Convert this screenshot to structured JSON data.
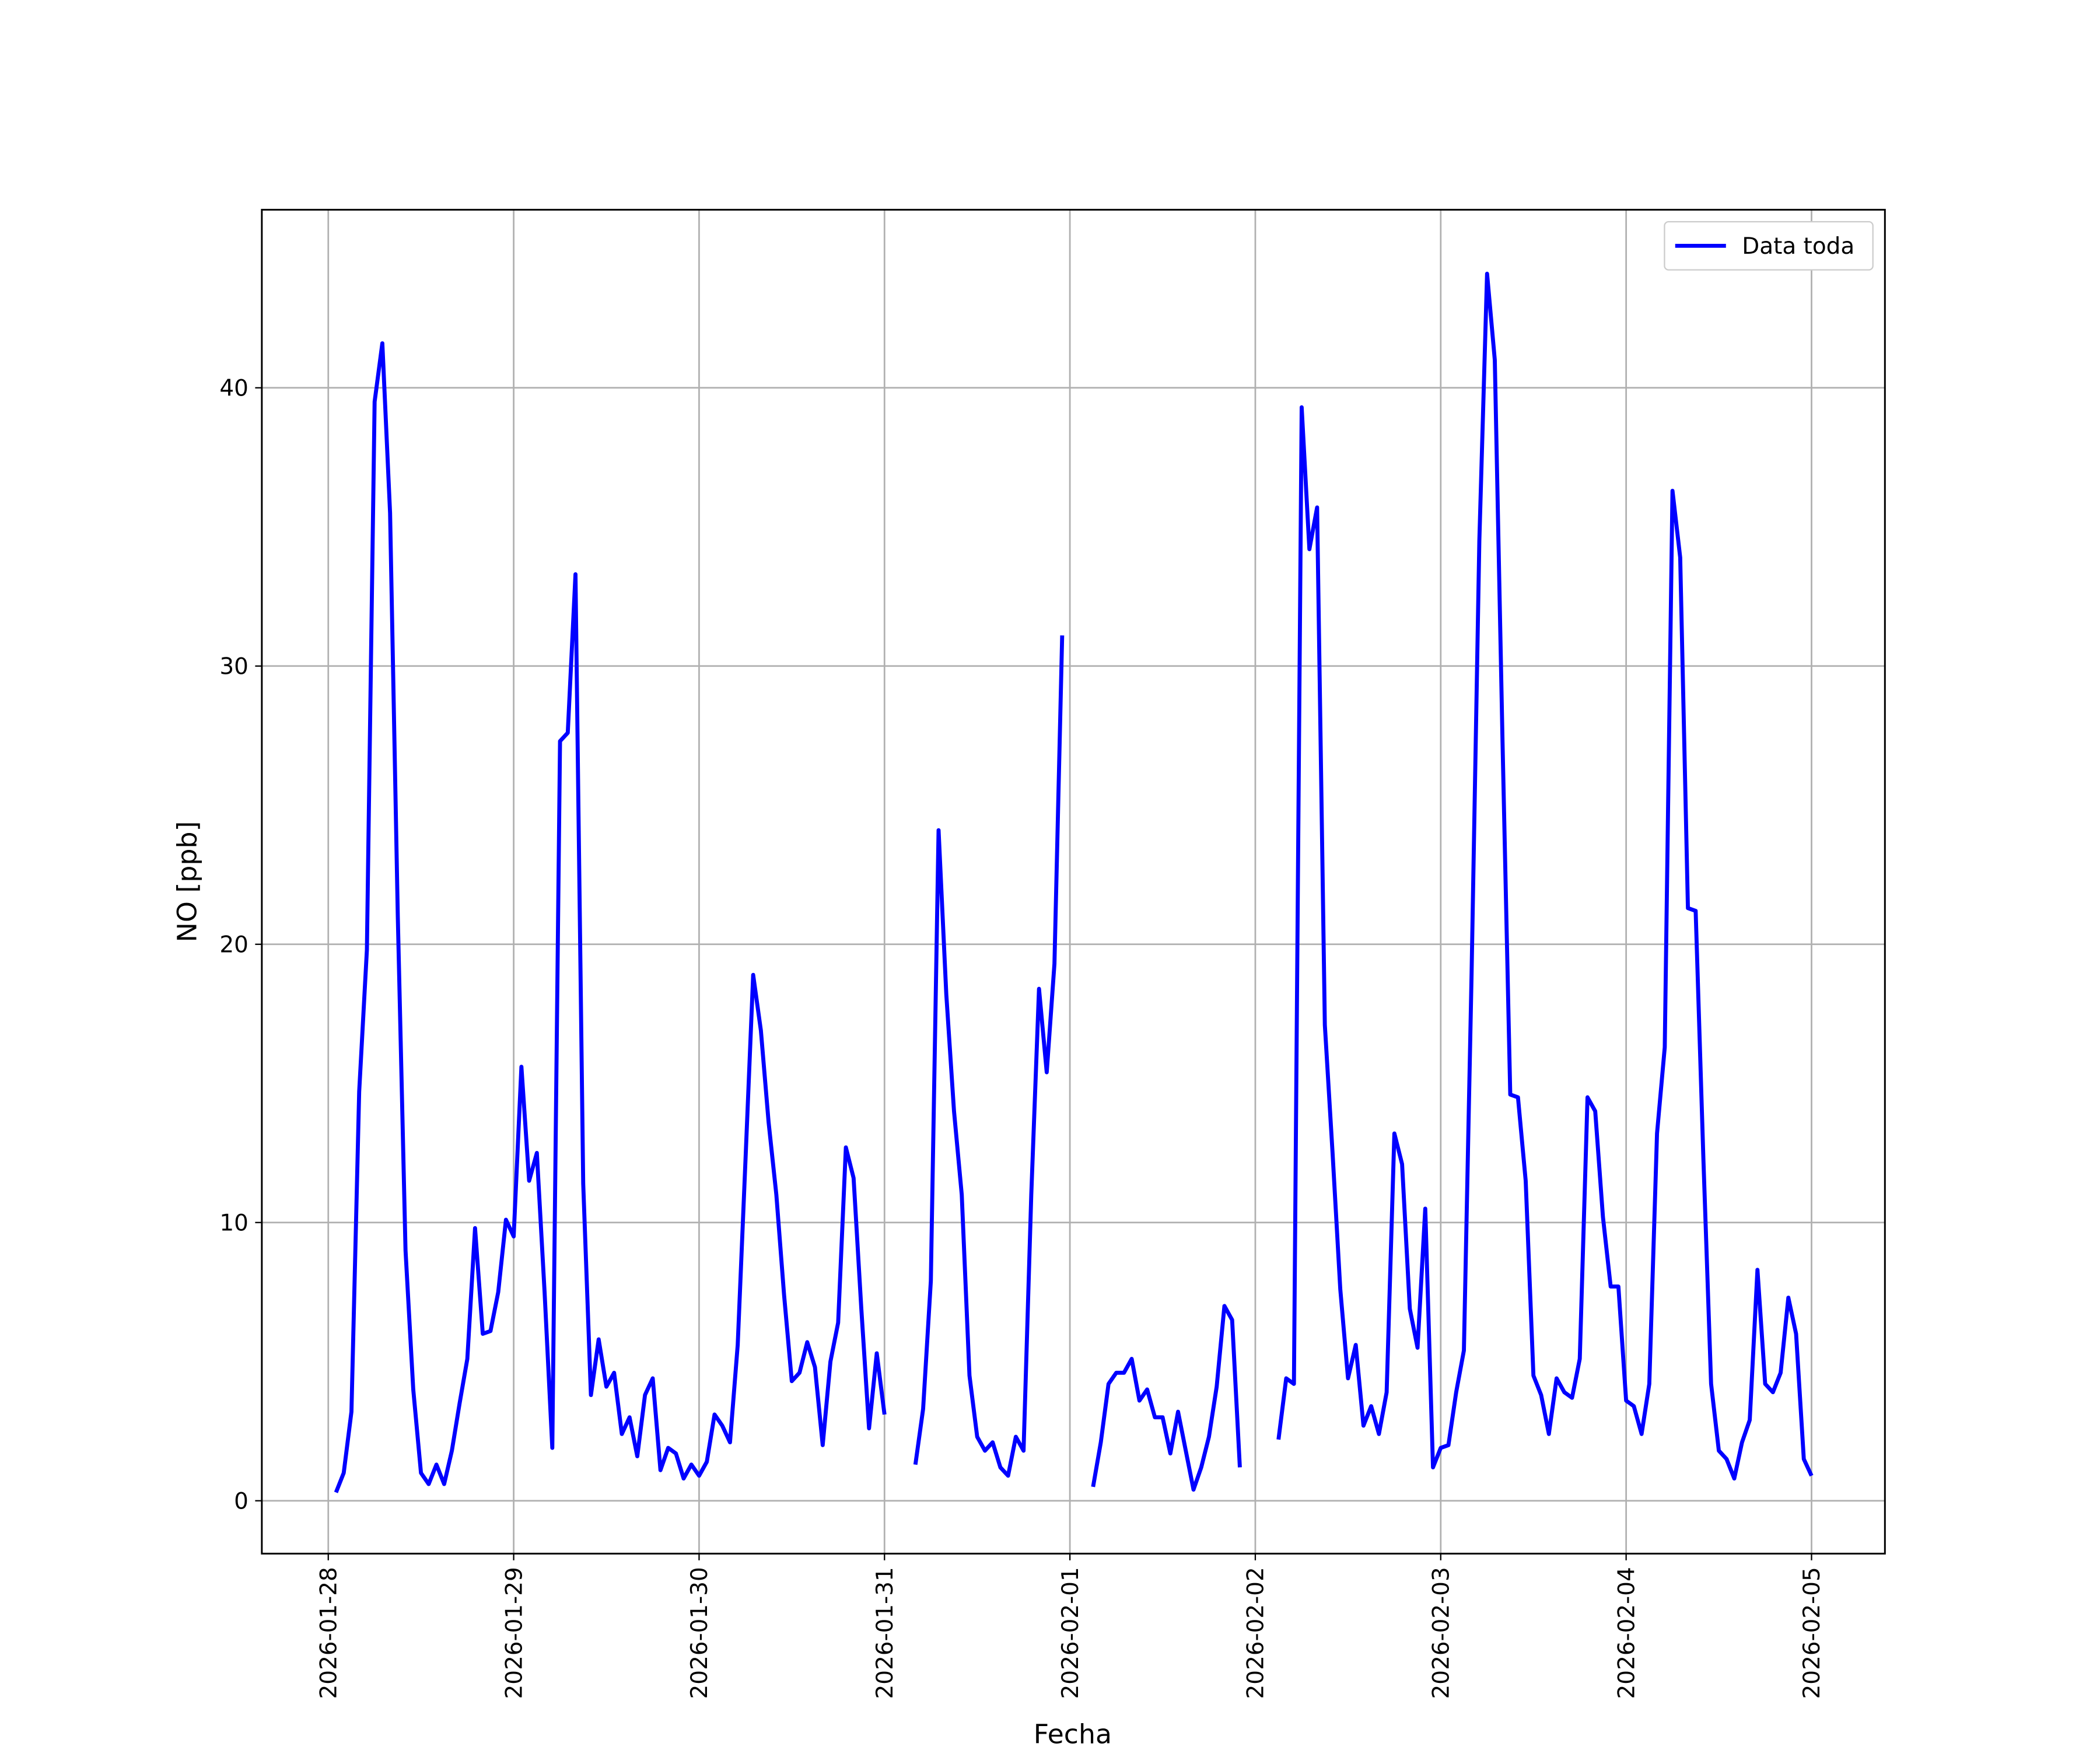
{
  "chart_data": {
    "type": "line",
    "xlabel": "Fecha",
    "ylabel": "NO [ppb]",
    "x": [
      "2026-01-28 01:00",
      "2026-01-28 02:00",
      "2026-01-28 03:00",
      "2026-01-28 04:00",
      "2026-01-28 05:00",
      "2026-01-28 06:00",
      "2026-01-28 07:00",
      "2026-01-28 08:00",
      "2026-01-28 09:00",
      "2026-01-28 10:00",
      "2026-01-28 11:00",
      "2026-01-28 12:00",
      "2026-01-28 13:00",
      "2026-01-28 14:00",
      "2026-01-28 15:00",
      "2026-01-28 16:00",
      "2026-01-28 17:00",
      "2026-01-28 18:00",
      "2026-01-28 19:00",
      "2026-01-28 20:00",
      "2026-01-28 21:00",
      "2026-01-28 22:00",
      "2026-01-28 23:00",
      "2026-01-29 00:00",
      "2026-01-29 01:00",
      "2026-01-29 02:00",
      "2026-01-29 03:00",
      "2026-01-29 04:00",
      "2026-01-29 05:00",
      "2026-01-29 06:00",
      "2026-01-29 07:00",
      "2026-01-29 08:00",
      "2026-01-29 09:00",
      "2026-01-29 10:00",
      "2026-01-29 11:00",
      "2026-01-29 12:00",
      "2026-01-29 13:00",
      "2026-01-29 14:00",
      "2026-01-29 15:00",
      "2026-01-29 16:00",
      "2026-01-29 17:00",
      "2026-01-29 18:00",
      "2026-01-29 19:00",
      "2026-01-29 20:00",
      "2026-01-29 21:00",
      "2026-01-29 22:00",
      "2026-01-29 23:00",
      "2026-01-30 00:00",
      "2026-01-30 01:00",
      "2026-01-30 02:00",
      "2026-01-30 03:00",
      "2026-01-30 04:00",
      "2026-01-30 05:00",
      "2026-01-30 06:00",
      "2026-01-30 07:00",
      "2026-01-30 08:00",
      "2026-01-30 09:00",
      "2026-01-30 10:00",
      "2026-01-30 11:00",
      "2026-01-30 12:00",
      "2026-01-30 13:00",
      "2026-01-30 14:00",
      "2026-01-30 15:00",
      "2026-01-30 16:00",
      "2026-01-30 17:00",
      "2026-01-30 18:00",
      "2026-01-30 19:00",
      "2026-01-30 20:00",
      "2026-01-30 21:00",
      "2026-01-30 22:00",
      "2026-01-30 23:00",
      "2026-01-31 00:00",
      "2026-01-31 01:00",
      "2026-01-31 02:00",
      "2026-01-31 03:00",
      "2026-01-31 04:00",
      "2026-01-31 05:00",
      "2026-01-31 06:00",
      "2026-01-31 07:00",
      "2026-01-31 08:00",
      "2026-01-31 09:00",
      "2026-01-31 10:00",
      "2026-01-31 11:00",
      "2026-01-31 12:00",
      "2026-01-31 13:00",
      "2026-01-31 14:00",
      "2026-01-31 15:00",
      "2026-01-31 16:00",
      "2026-01-31 17:00",
      "2026-01-31 18:00",
      "2026-01-31 19:00",
      "2026-01-31 20:00",
      "2026-01-31 21:00",
      "2026-01-31 22:00",
      "2026-01-31 23:00",
      "2026-02-01 00:00",
      "2026-02-01 01:00",
      "2026-02-01 02:00",
      "2026-02-01 03:00",
      "2026-02-01 04:00",
      "2026-02-01 05:00",
      "2026-02-01 06:00",
      "2026-02-01 07:00",
      "2026-02-01 08:00",
      "2026-02-01 09:00",
      "2026-02-01 10:00",
      "2026-02-01 11:00",
      "2026-02-01 12:00",
      "2026-02-01 13:00",
      "2026-02-01 14:00",
      "2026-02-01 15:00",
      "2026-02-01 16:00",
      "2026-02-01 17:00",
      "2026-02-01 18:00",
      "2026-02-01 19:00",
      "2026-02-01 20:00",
      "2026-02-01 21:00",
      "2026-02-01 22:00",
      "2026-02-01 23:00",
      "2026-02-02 00:00",
      "2026-02-02 01:00",
      "2026-02-02 02:00",
      "2026-02-02 03:00",
      "2026-02-02 04:00",
      "2026-02-02 05:00",
      "2026-02-02 06:00",
      "2026-02-02 07:00",
      "2026-02-02 08:00",
      "2026-02-02 09:00",
      "2026-02-02 10:00",
      "2026-02-02 11:00",
      "2026-02-02 12:00",
      "2026-02-02 13:00",
      "2026-02-02 14:00",
      "2026-02-02 15:00",
      "2026-02-02 16:00",
      "2026-02-02 17:00",
      "2026-02-02 18:00",
      "2026-02-02 19:00",
      "2026-02-02 20:00",
      "2026-02-02 21:00",
      "2026-02-02 22:00",
      "2026-02-02 23:00",
      "2026-02-03 00:00",
      "2026-02-03 01:00",
      "2026-02-03 02:00",
      "2026-02-03 03:00",
      "2026-02-03 04:00",
      "2026-02-03 05:00",
      "2026-02-03 06:00",
      "2026-02-03 07:00",
      "2026-02-03 08:00",
      "2026-02-03 09:00",
      "2026-02-03 10:00",
      "2026-02-03 11:00",
      "2026-02-03 12:00",
      "2026-02-03 13:00",
      "2026-02-03 14:00",
      "2026-02-03 15:00",
      "2026-02-03 16:00",
      "2026-02-03 17:00",
      "2026-02-03 18:00",
      "2026-02-03 19:00",
      "2026-02-03 20:00",
      "2026-02-03 21:00",
      "2026-02-03 22:00",
      "2026-02-03 23:00",
      "2026-02-04 00:00",
      "2026-02-04 01:00",
      "2026-02-04 02:00",
      "2026-02-04 03:00",
      "2026-02-04 04:00",
      "2026-02-04 05:00",
      "2026-02-04 06:00",
      "2026-02-04 07:00",
      "2026-02-04 08:00",
      "2026-02-04 09:00",
      "2026-02-04 10:00",
      "2026-02-04 11:00",
      "2026-02-04 12:00",
      "2026-02-04 13:00",
      "2026-02-04 14:00",
      "2026-02-04 15:00",
      "2026-02-04 16:00",
      "2026-02-04 17:00",
      "2026-02-04 18:00",
      "2026-02-04 19:00",
      "2026-02-04 20:00",
      "2026-02-04 21:00",
      "2026-02-04 22:00",
      "2026-02-04 23:00",
      "2026-02-05 00:00"
    ],
    "series": [
      {
        "name": "Data toda",
        "color": "#0000ff",
        "values": [
          0.3,
          1,
          3.2,
          14.7,
          19.8,
          39.5,
          41.6,
          35.5,
          21,
          9,
          4,
          1,
          0.6,
          1.3,
          0.6,
          1.8,
          3.5,
          5.1,
          9.8,
          6,
          6.1,
          7.5,
          10.1,
          9.5,
          15.6,
          11.5,
          12.5,
          7.5,
          1.9,
          27.3,
          27.6,
          33.3,
          11.4,
          3.8,
          5.8,
          4.1,
          4.6,
          2.4,
          3,
          1.6,
          3.8,
          4.4,
          1.1,
          1.9,
          1.7,
          0.8,
          1.3,
          0.9,
          1.4,
          3.1,
          2.7,
          2.1,
          5.6,
          12.2,
          18.9,
          16.9,
          13.6,
          11,
          7.4,
          4.3,
          4.6,
          5.7,
          4.8,
          2,
          5,
          6.4,
          12.7,
          11.6,
          6.9,
          2.6,
          5.3,
          3.1,
          null,
          null,
          null,
          1.3,
          3.3,
          7.9,
          24.1,
          18.2,
          14,
          11,
          4.5,
          2.3,
          1.8,
          2.1,
          1.2,
          0.9,
          2.3,
          1.8,
          11,
          18.4,
          15.4,
          19.3,
          31.1,
          null,
          null,
          null,
          0.5,
          2.1,
          4.2,
          4.6,
          4.6,
          5.1,
          3.6,
          4,
          3,
          3,
          1.7,
          3.2,
          1.8,
          0.4,
          1.2,
          2.3,
          4.1,
          7,
          6.5,
          1.2,
          null,
          null,
          null,
          null,
          2.2,
          4.4,
          4.2,
          39.3,
          34.2,
          35.7,
          17.1,
          12.5,
          7.6,
          4.4,
          5.6,
          2.7,
          3.4,
          2.4,
          3.9,
          13.2,
          12.1,
          6.9,
          5.5,
          10.5,
          1.2,
          1.9,
          2,
          3.9,
          5.4,
          19,
          34.5,
          44.1,
          41,
          27.3,
          14.6,
          14.5,
          11.5,
          4.5,
          3.8,
          2.4,
          4.4,
          3.9,
          3.7,
          5.1,
          14.5,
          14,
          10.2,
          7.7,
          7.7,
          3.6,
          3.4,
          2.4,
          4.2,
          13.2,
          16.3,
          36.3,
          33.9,
          21.3,
          21.2,
          12.3,
          4.2,
          1.8,
          1.5,
          0.8,
          2.1,
          2.9,
          8.3,
          4.2,
          3.9,
          4.6,
          7.3,
          6,
          1.5,
          0.9
        ]
      }
    ],
    "xlim": [
      "2026-01-27 15:24",
      "2026-02-05 09:30"
    ],
    "xticks": [
      "2026-01-28",
      "2026-01-29",
      "2026-01-30",
      "2026-01-31",
      "2026-02-01",
      "2026-02-02",
      "2026-02-03",
      "2026-02-04",
      "2026-02-05"
    ],
    "ylim": [
      -1.9,
      46.4
    ],
    "yticks": [
      0,
      10,
      20,
      30,
      40
    ],
    "grid": true,
    "legend": "upper right"
  }
}
